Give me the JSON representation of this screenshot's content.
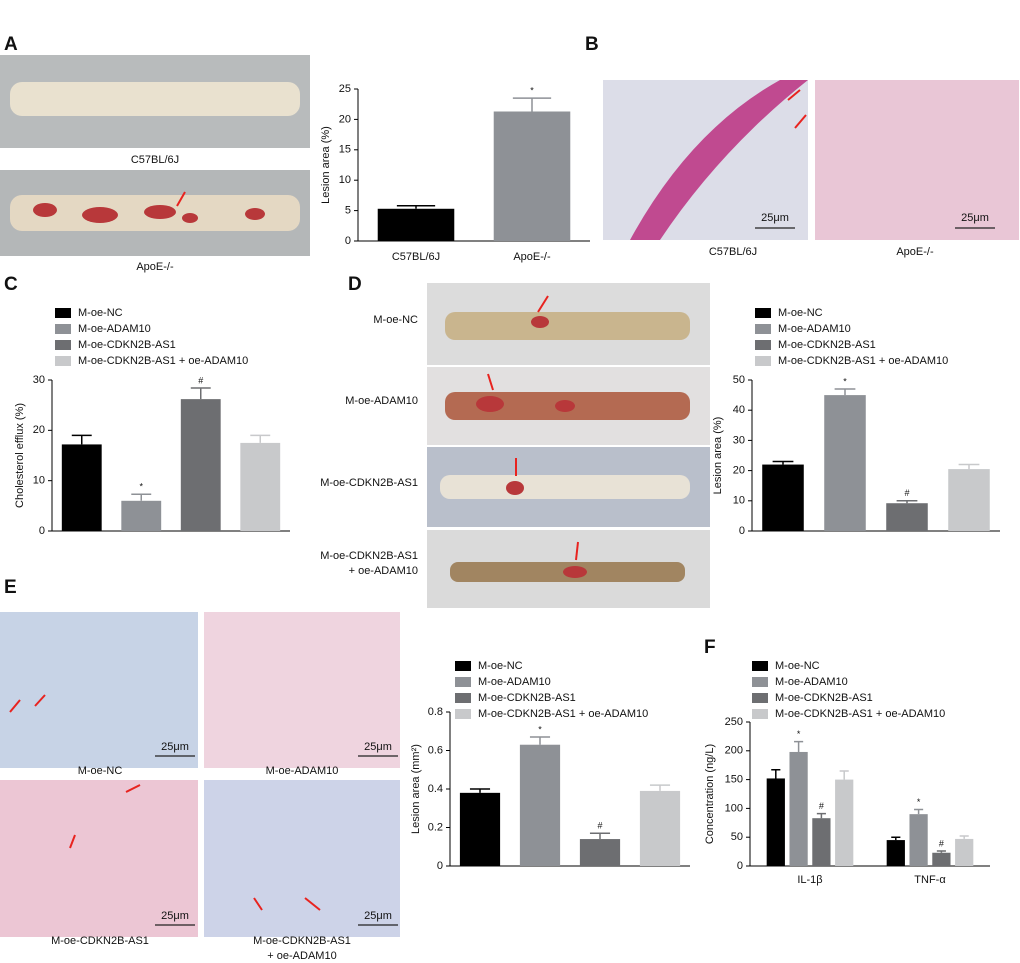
{
  "panel_letters": [
    "A",
    "B",
    "C",
    "D",
    "E",
    "F"
  ],
  "image_captions": {
    "A": [
      "C57BL/6J",
      "ApoE-/-"
    ],
    "B": [
      "C57BL/6J",
      "ApoE-/-"
    ],
    "D": [
      [
        "M-oe-NC"
      ],
      [
        "M-oe-ADAM10"
      ],
      [
        "M-oe-CDKN2B-AS1"
      ],
      [
        "M-oe-CDKN2B-AS1",
        "+ oe-ADAM10"
      ]
    ],
    "E": [
      [
        "M-oe-NC"
      ],
      [
        "M-oe-ADAM10"
      ],
      [
        "M-oe-CDKN2B-AS1"
      ],
      [
        "M-oe-CDKN2B-AS1",
        "+ oe-ADAM10"
      ]
    ]
  },
  "scale_bars": {
    "B": [
      "25μm",
      "25μm"
    ],
    "E": [
      "25μm",
      "25μm",
      "25μm",
      "25μm"
    ]
  },
  "chart_data": [
    {
      "type": "bar",
      "y_label": "Lesion area (%)",
      "categories": [
        "C57BL/6J",
        "ApoE-/-"
      ],
      "values": [
        5.3,
        21.3
      ],
      "errors": [
        0.5,
        2.2
      ],
      "annotations": [
        null,
        "*"
      ],
      "colors": [
        "#000000",
        "#8e9196"
      ],
      "ylim": [
        0,
        25
      ],
      "yticks": [
        0,
        5,
        10,
        15,
        20,
        25
      ]
    },
    {
      "type": "bar",
      "y_label": "Cholesterol efflux (%)",
      "ylim": [
        0,
        30
      ],
      "yticks": [
        0,
        10,
        20,
        30
      ],
      "series": [
        {
          "name": "M-oe-NC",
          "color": "#000000",
          "values": [
            17.2
          ],
          "errors": [
            1.8
          ],
          "annotations": [
            null
          ]
        },
        {
          "name": "M-oe-ADAM10",
          "color": "#8e9196",
          "values": [
            6
          ],
          "errors": [
            1.3
          ],
          "annotations": [
            "*"
          ]
        },
        {
          "name": "M-oe-CDKN2B-AS1",
          "color": "#6d6e71",
          "values": [
            26.2
          ],
          "errors": [
            2.2
          ],
          "annotations": [
            "#"
          ]
        },
        {
          "name": "M-oe-CDKN2B-AS1 + oe-ADAM10",
          "color": "#c8c9cb",
          "values": [
            17.5
          ],
          "errors": [
            1.5
          ],
          "annotations": [
            null
          ]
        }
      ]
    },
    {
      "type": "bar",
      "y_label": "Lesion area (%)",
      "ylim": [
        0,
        50
      ],
      "yticks": [
        0,
        10,
        20,
        30,
        40,
        50
      ],
      "series": [
        {
          "name": "M-oe-NC",
          "color": "#000000",
          "values": [
            22
          ],
          "errors": [
            1
          ],
          "annotations": [
            null
          ]
        },
        {
          "name": "M-oe-ADAM10",
          "color": "#8e9196",
          "values": [
            45
          ],
          "errors": [
            2
          ],
          "annotations": [
            "*"
          ]
        },
        {
          "name": "M-oe-CDKN2B-AS1",
          "color": "#6d6e71",
          "values": [
            9.2
          ],
          "errors": [
            0.8
          ],
          "annotations": [
            "#"
          ]
        },
        {
          "name": "M-oe-CDKN2B-AS1 + oe-ADAM10",
          "color": "#c8c9cb",
          "values": [
            20.5
          ],
          "errors": [
            1.5
          ],
          "annotations": [
            null
          ]
        }
      ]
    },
    {
      "type": "bar",
      "y_label": "Lesion area (mm²)",
      "ylim": [
        0,
        0.8
      ],
      "yticks": [
        0,
        0.2,
        0.4,
        0.6,
        0.8
      ],
      "series": [
        {
          "name": "M-oe-NC",
          "color": "#000000",
          "values": [
            0.38
          ],
          "errors": [
            0.02
          ],
          "annotations": [
            null
          ]
        },
        {
          "name": "M-oe-ADAM10",
          "color": "#8e9196",
          "values": [
            0.63
          ],
          "errors": [
            0.04
          ],
          "annotations": [
            "*"
          ]
        },
        {
          "name": "M-oe-CDKN2B-AS1",
          "color": "#6d6e71",
          "values": [
            0.14
          ],
          "errors": [
            0.03
          ],
          "annotations": [
            "#"
          ]
        },
        {
          "name": "M-oe-CDKN2B-AS1 + oe-ADAM10",
          "color": "#c8c9cb",
          "values": [
            0.39
          ],
          "errors": [
            0.03
          ],
          "annotations": [
            null
          ]
        }
      ]
    },
    {
      "type": "bar",
      "y_label": "Concentration (ng/L)",
      "categories": [
        "IL-1β",
        "TNF-α"
      ],
      "ylim": [
        0,
        250
      ],
      "yticks": [
        0,
        50,
        100,
        150,
        200,
        250
      ],
      "series": [
        {
          "name": "M-oe-NC",
          "color": "#000000",
          "values": [
            152,
            45
          ],
          "errors": [
            15,
            5
          ],
          "annotations": [
            null,
            null
          ]
        },
        {
          "name": "M-oe-ADAM10",
          "color": "#8e9196",
          "values": [
            198,
            90
          ],
          "errors": [
            18,
            8
          ],
          "annotations": [
            "*",
            "*"
          ]
        },
        {
          "name": "M-oe-CDKN2B-AS1",
          "color": "#6d6e71",
          "values": [
            83,
            23
          ],
          "errors": [
            8,
            3
          ],
          "annotations": [
            "#",
            "#"
          ]
        },
        {
          "name": "M-oe-CDKN2B-AS1 + oe-ADAM10",
          "color": "#c8c9cb",
          "values": [
            150,
            47
          ],
          "errors": [
            15,
            5
          ],
          "annotations": [
            null,
            null
          ]
        }
      ]
    }
  ]
}
